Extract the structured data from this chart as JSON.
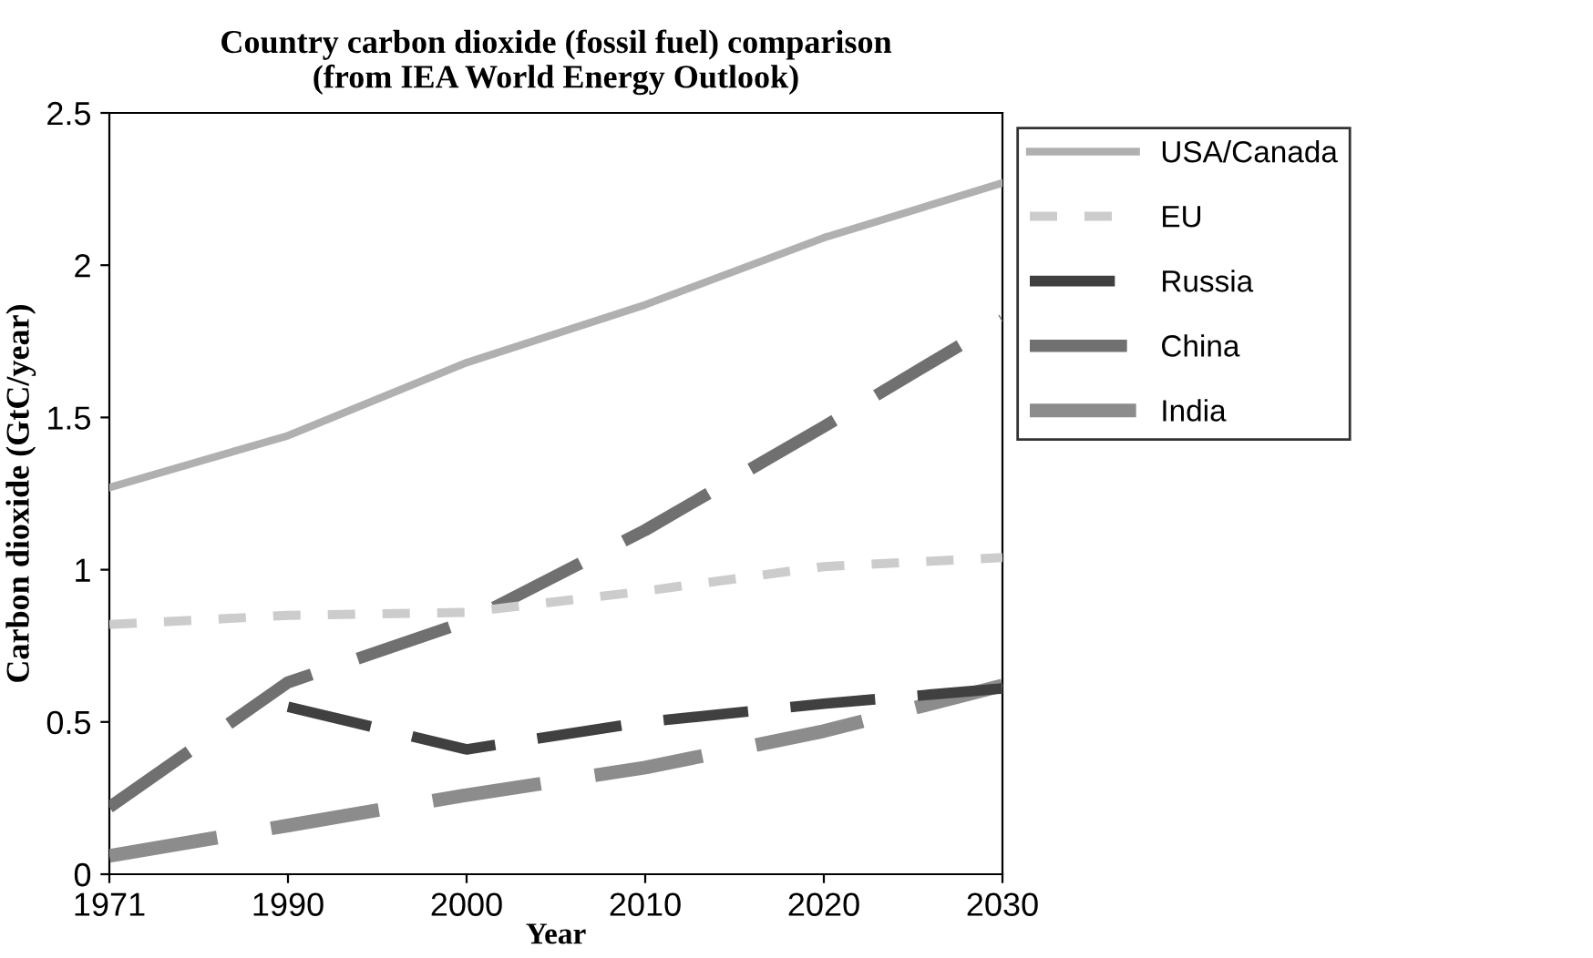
{
  "chart_data": {
    "type": "line",
    "title": "Country carbon dioxide (fossil fuel) comparison\n(from IEA World Energy Outlook)",
    "xlabel": "Year",
    "ylabel": "Carbon dioxide (GtC/year)",
    "categories": [
      "1971",
      "1990",
      "2000",
      "2010",
      "2020",
      "2030"
    ],
    "series": [
      {
        "name": "USA/Canada",
        "color": "#b0b0b0",
        "line_style": "solid",
        "values": [
          1.27,
          1.44,
          1.68,
          1.87,
          2.09,
          2.27
        ]
      },
      {
        "name": "EU",
        "color": "#cccccc",
        "line_style": "dotted",
        "values": [
          0.82,
          0.85,
          0.86,
          0.93,
          1.01,
          1.04
        ]
      },
      {
        "name": "Russia",
        "color": "#404040",
        "line_style": "dashed",
        "values": [
          null,
          0.55,
          0.41,
          0.5,
          0.56,
          0.61
        ]
      },
      {
        "name": "China",
        "color": "#707070",
        "line_style": "dashed",
        "values": [
          0.22,
          0.63,
          0.83,
          1.13,
          1.47,
          1.82
        ]
      },
      {
        "name": "India",
        "color": "#8c8c8c",
        "line_style": "dashed",
        "values": [
          0.06,
          0.16,
          0.26,
          0.35,
          0.47,
          0.62
        ]
      }
    ],
    "ylim": [
      0,
      2.5
    ],
    "yticks": [
      0,
      0.5,
      1,
      1.5,
      2,
      2.5
    ],
    "grid": false,
    "legend": "right",
    "marker": "none"
  }
}
